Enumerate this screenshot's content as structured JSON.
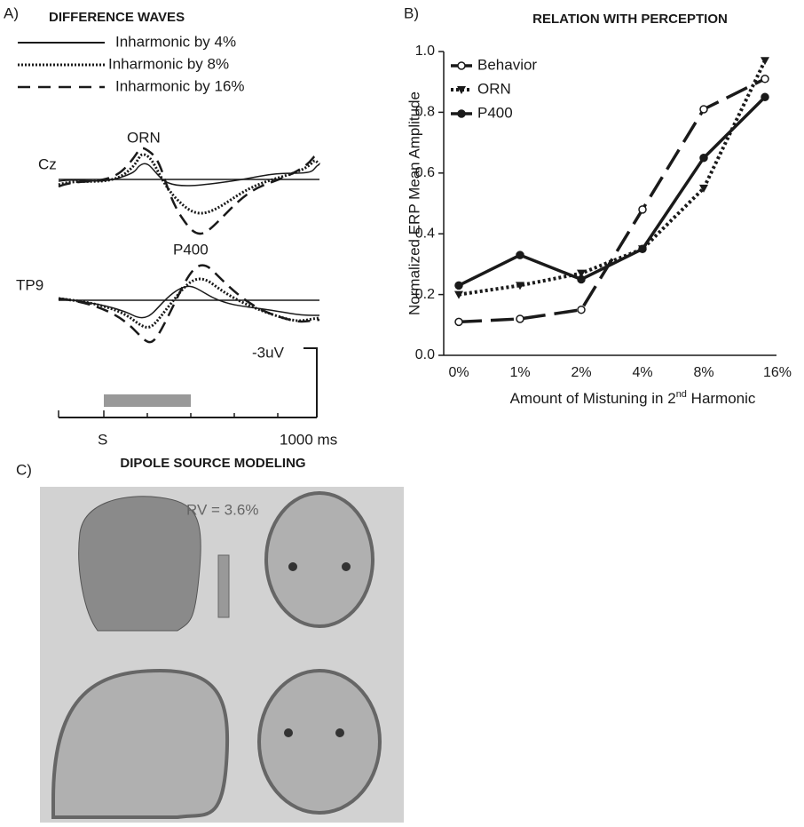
{
  "panel_a": {
    "label": "A)",
    "title": "DIFFERENCE WAVES",
    "legend": [
      "Inharmonic by 4%",
      "Inharmonic by 8%",
      "Inharmonic by 16%"
    ],
    "peaks": [
      "ORN",
      "P400"
    ],
    "channels": [
      "Cz",
      "TP9"
    ],
    "scale": "-3uV",
    "time_start": "S",
    "time_end": "1000 ms"
  },
  "chart_data": {
    "type": "line",
    "label": "B)",
    "title": "RELATION WITH PERCEPTION",
    "y_label": "Normalized ERP Mean Amplitude",
    "x_label": [
      "Amount of Mistuning in 2",
      "nd",
      " Harmonic"
    ],
    "categories": [
      "0%",
      "1%",
      "2%",
      "4%",
      "8%",
      "16%"
    ],
    "series": [
      {
        "name": "Behavior",
        "color": "#1a1a1a",
        "line_style": "dashed",
        "marker": "open-circle",
        "values": [
          0.11,
          0.12,
          0.15,
          0.48,
          0.81,
          0.91
        ]
      },
      {
        "name": "ORN",
        "color": "#1a1a1a",
        "line_style": "dotted",
        "marker": "triangle",
        "values": [
          0.2,
          0.23,
          0.27,
          0.35,
          0.55,
          0.97
        ]
      },
      {
        "name": "P400",
        "color": "#1a1a1a",
        "line_style": "solid",
        "marker": "filled-circle",
        "values": [
          0.23,
          0.33,
          0.25,
          0.35,
          0.65,
          0.85
        ]
      }
    ],
    "ylim": [
      0,
      1
    ],
    "yticks": [
      {
        "value": 0,
        "label": "0.0"
      },
      0.2,
      0.4,
      0.6,
      0.8,
      {
        "value": 1,
        "label": "1.0"
      }
    ],
    "legend_position": "upper-left",
    "grid": false
  },
  "panel_c": {
    "label": "C)",
    "title": "DIPOLE SOURCE MODELING",
    "annotation": "RV = 3.6%"
  }
}
